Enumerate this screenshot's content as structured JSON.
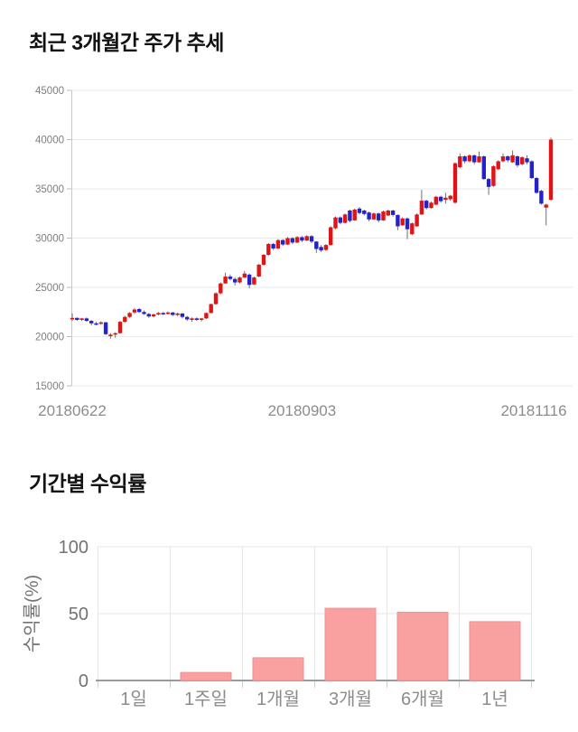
{
  "chart_data": [
    {
      "type": "candlestick",
      "title": "최근 3개월간 주가 추세",
      "xlabel": "",
      "ylabel": "",
      "ylim": [
        15000,
        45000
      ],
      "grid": true,
      "y_tick_labels": [
        45000,
        40000,
        35000,
        30000,
        25000,
        20000,
        15000
      ],
      "x_tick_labels": [
        "20180622",
        "20180903",
        "20181116"
      ],
      "up_color": "#e01414",
      "down_color": "#2323cc",
      "wick_color": "#6f6f6f",
      "grid_color": "#e9e9e9",
      "axis_color": "#c9c9c9",
      "tick_text_color": "#7e7e7e",
      "candles": [
        [
          21750,
          22350,
          21600,
          21900
        ],
        [
          21900,
          21950,
          21600,
          21700
        ],
        [
          21700,
          21900,
          21600,
          21850
        ],
        [
          21850,
          21950,
          21500,
          21600
        ],
        [
          21600,
          21700,
          21150,
          21350
        ],
        [
          21350,
          21500,
          21150,
          21300
        ],
        [
          21300,
          21550,
          21200,
          21450
        ],
        [
          21450,
          21500,
          20150,
          20250
        ],
        [
          20050,
          20350,
          19800,
          20200
        ],
        [
          20250,
          20450,
          19900,
          20350
        ],
        [
          20350,
          21600,
          20300,
          21500
        ],
        [
          21500,
          22100,
          21400,
          22000
        ],
        [
          22000,
          22500,
          21900,
          22400
        ],
        [
          22450,
          22900,
          22300,
          22750
        ],
        [
          22800,
          22900,
          22400,
          22500
        ],
        [
          22500,
          22650,
          22200,
          22300
        ],
        [
          22300,
          22400,
          21900,
          22050
        ],
        [
          22050,
          22350,
          21950,
          22250
        ],
        [
          22250,
          22500,
          22150,
          22400
        ],
        [
          22400,
          22500,
          22200,
          22300
        ],
        [
          22300,
          22550,
          22250,
          22450
        ],
        [
          22450,
          22500,
          22100,
          22200
        ],
        [
          22200,
          22450,
          22100,
          22350
        ],
        [
          22350,
          22400,
          21850,
          22000
        ],
        [
          22000,
          22100,
          21600,
          21750
        ],
        [
          21750,
          21950,
          21500,
          21850
        ],
        [
          21850,
          21950,
          21600,
          21700
        ],
        [
          21700,
          21900,
          21550,
          21850
        ],
        [
          21850,
          22450,
          21800,
          22400
        ],
        [
          22400,
          23350,
          22350,
          23300
        ],
        [
          23300,
          24500,
          23250,
          24400
        ],
        [
          24400,
          25500,
          24300,
          25400
        ],
        [
          25400,
          26500,
          25350,
          26100
        ],
        [
          26100,
          26300,
          25700,
          25850
        ],
        [
          25850,
          26000,
          25200,
          25500
        ],
        [
          25500,
          26100,
          25400,
          26000
        ],
        [
          26000,
          26650,
          25950,
          26400
        ],
        [
          26300,
          26400,
          24900,
          25250
        ],
        [
          25300,
          26100,
          25250,
          26000
        ],
        [
          26100,
          27400,
          26050,
          27300
        ],
        [
          27300,
          28400,
          27200,
          28300
        ],
        [
          28300,
          29500,
          28200,
          29400
        ],
        [
          29400,
          29500,
          28800,
          28950
        ],
        [
          28950,
          29900,
          28900,
          29800
        ],
        [
          29800,
          29900,
          29200,
          29350
        ],
        [
          29350,
          30100,
          29300,
          30000
        ],
        [
          30000,
          30100,
          29400,
          29550
        ],
        [
          29550,
          30200,
          29500,
          30100
        ],
        [
          30100,
          30200,
          29600,
          29750
        ],
        [
          29750,
          30300,
          29700,
          30200
        ],
        [
          30200,
          30300,
          29500,
          29650
        ],
        [
          29650,
          29700,
          28500,
          28900
        ],
        [
          29100,
          29300,
          28600,
          28750
        ],
        [
          28800,
          29400,
          28700,
          29300
        ],
        [
          29300,
          31200,
          29250,
          31100
        ],
        [
          31000,
          32200,
          30900,
          32100
        ],
        [
          32100,
          32200,
          31400,
          31550
        ],
        [
          31550,
          32500,
          31500,
          32400
        ],
        [
          32800,
          32900,
          31600,
          31750
        ],
        [
          31800,
          33000,
          31750,
          32900
        ],
        [
          33000,
          33150,
          32400,
          32550
        ],
        [
          32800,
          32900,
          32300,
          32450
        ],
        [
          32600,
          32700,
          31700,
          31900
        ],
        [
          31900,
          32600,
          31850,
          32500
        ],
        [
          32500,
          32600,
          31600,
          31800
        ],
        [
          31800,
          32800,
          31750,
          32700
        ],
        [
          32300,
          32900,
          32250,
          32800
        ],
        [
          32800,
          32900,
          32200,
          32350
        ],
        [
          32350,
          32400,
          30800,
          31200
        ],
        [
          31300,
          32100,
          31250,
          32000
        ],
        [
          32000,
          32100,
          29900,
          30900
        ],
        [
          30400,
          31600,
          30300,
          31500
        ],
        [
          31200,
          32500,
          31150,
          32400
        ],
        [
          32400,
          34900,
          32350,
          33800
        ],
        [
          33800,
          33900,
          32900,
          33050
        ],
        [
          33050,
          33700,
          33000,
          33600
        ],
        [
          33400,
          34300,
          33350,
          34200
        ],
        [
          34200,
          34300,
          33600,
          33750
        ],
        [
          33900,
          34600,
          33500,
          34100
        ],
        [
          33950,
          34400,
          33800,
          34300
        ],
        [
          33600,
          37700,
          33500,
          37600
        ],
        [
          37200,
          38600,
          37100,
          38300
        ],
        [
          38300,
          38400,
          37600,
          37800
        ],
        [
          37800,
          38500,
          37700,
          38400
        ],
        [
          38400,
          38500,
          37500,
          37700
        ],
        [
          37700,
          38800,
          37650,
          38300
        ],
        [
          38300,
          38400,
          35900,
          36000
        ],
        [
          36000,
          36100,
          34400,
          35200
        ],
        [
          35300,
          37400,
          35200,
          37300
        ],
        [
          37000,
          37900,
          36900,
          37800
        ],
        [
          37800,
          38600,
          37700,
          38300
        ],
        [
          38300,
          38400,
          37700,
          37900
        ],
        [
          37700,
          38900,
          37650,
          38400
        ],
        [
          38300,
          38400,
          37200,
          37400
        ],
        [
          37500,
          38300,
          37400,
          38200
        ],
        [
          38100,
          38400,
          37500,
          37700
        ],
        [
          37800,
          37900,
          36000,
          36100
        ],
        [
          36100,
          36200,
          34500,
          34600
        ],
        [
          34800,
          34900,
          33400,
          33500
        ],
        [
          33100,
          33500,
          31300,
          33400
        ],
        [
          33900,
          40200,
          33800,
          40000
        ]
      ]
    },
    {
      "type": "bar",
      "title": "기간별 수익률",
      "xlabel": "",
      "ylabel": "수익률(%)",
      "categories": [
        "1일",
        "1주일",
        "1개월",
        "3개월",
        "6개월",
        "1년"
      ],
      "values": [
        0,
        6,
        17,
        54,
        51,
        44
      ],
      "y_tick_labels": [
        100,
        50,
        0
      ],
      "ylim": [
        0,
        100
      ],
      "grid": true,
      "legend": "none",
      "bar_color": "#f9a1a1",
      "bar_border_color": "#f48f8f",
      "grid_color": "#e6e6e6",
      "baseline_color": "#9a9a9a",
      "tick_text_color": "#737373",
      "category_text_color": "#8c8c8c"
    }
  ]
}
